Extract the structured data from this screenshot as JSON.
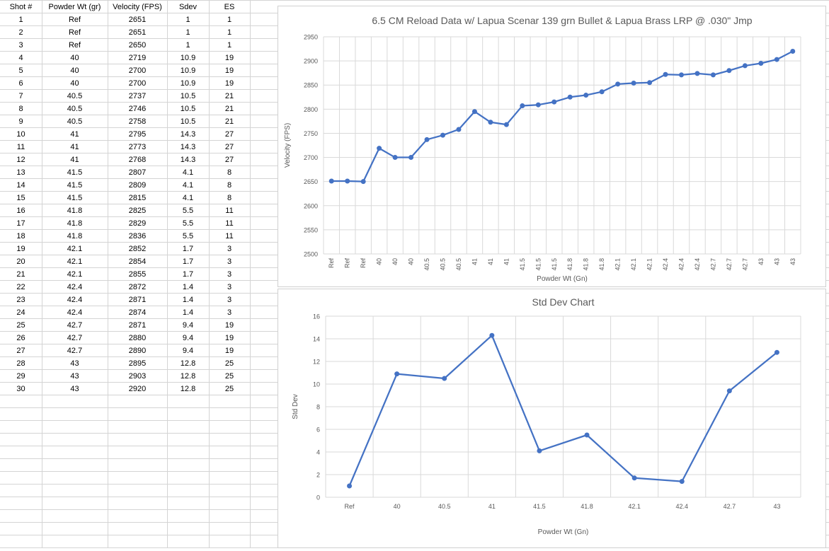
{
  "table": {
    "headers": [
      "Shot #",
      "Powder Wt (gr)",
      "Velocity (FPS)",
      "Sdev",
      "ES"
    ],
    "rows": [
      [
        "1",
        "Ref",
        "2651",
        "1",
        "1"
      ],
      [
        "2",
        "Ref",
        "2651",
        "1",
        "1"
      ],
      [
        "3",
        "Ref",
        "2650",
        "1",
        "1"
      ],
      [
        "4",
        "40",
        "2719",
        "10.9",
        "19"
      ],
      [
        "5",
        "40",
        "2700",
        "10.9",
        "19"
      ],
      [
        "6",
        "40",
        "2700",
        "10.9",
        "19"
      ],
      [
        "7",
        "40.5",
        "2737",
        "10.5",
        "21"
      ],
      [
        "8",
        "40.5",
        "2746",
        "10.5",
        "21"
      ],
      [
        "9",
        "40.5",
        "2758",
        "10.5",
        "21"
      ],
      [
        "10",
        "41",
        "2795",
        "14.3",
        "27"
      ],
      [
        "11",
        "41",
        "2773",
        "14.3",
        "27"
      ],
      [
        "12",
        "41",
        "2768",
        "14.3",
        "27"
      ],
      [
        "13",
        "41.5",
        "2807",
        "4.1",
        "8"
      ],
      [
        "14",
        "41.5",
        "2809",
        "4.1",
        "8"
      ],
      [
        "15",
        "41.5",
        "2815",
        "4.1",
        "8"
      ],
      [
        "16",
        "41.8",
        "2825",
        "5.5",
        "11"
      ],
      [
        "17",
        "41.8",
        "2829",
        "5.5",
        "11"
      ],
      [
        "18",
        "41.8",
        "2836",
        "5.5",
        "11"
      ],
      [
        "19",
        "42.1",
        "2852",
        "1.7",
        "3"
      ],
      [
        "20",
        "42.1",
        "2854",
        "1.7",
        "3"
      ],
      [
        "21",
        "42.1",
        "2855",
        "1.7",
        "3"
      ],
      [
        "22",
        "42.4",
        "2872",
        "1.4",
        "3"
      ],
      [
        "23",
        "42.4",
        "2871",
        "1.4",
        "3"
      ],
      [
        "24",
        "42.4",
        "2874",
        "1.4",
        "3"
      ],
      [
        "25",
        "42.7",
        "2871",
        "9.4",
        "19"
      ],
      [
        "26",
        "42.7",
        "2880",
        "9.4",
        "19"
      ],
      [
        "27",
        "42.7",
        "2890",
        "9.4",
        "19"
      ],
      [
        "28",
        "43",
        "2895",
        "12.8",
        "25"
      ],
      [
        "29",
        "43",
        "2903",
        "12.8",
        "25"
      ],
      [
        "30",
        "43",
        "2920",
        "12.8",
        "25"
      ]
    ]
  },
  "chart_data": [
    {
      "type": "line",
      "title": "6.5 CM Reload Data w/ Lapua Scenar 139 grn Bullet & Lapua Brass LRP @ .030\" Jmp",
      "xlabel": "Powder Wt (Gn)",
      "ylabel": "Velocity (FPS)",
      "ylim": [
        2500,
        2950
      ],
      "yticks": [
        2500,
        2550,
        2600,
        2650,
        2700,
        2750,
        2800,
        2850,
        2900,
        2950
      ],
      "grid": true,
      "categories": [
        "Ref",
        "Ref",
        "Ref",
        "40",
        "40",
        "40",
        "40.5",
        "40.5",
        "40.5",
        "41",
        "41",
        "41",
        "41.5",
        "41.5",
        "41.5",
        "41.8",
        "41.8",
        "41.8",
        "42.1",
        "42.1",
        "42.1",
        "42.4",
        "42.4",
        "42.4",
        "42.7",
        "42.7",
        "42.7",
        "43",
        "43",
        "43"
      ],
      "series": [
        {
          "values": [
            2651,
            2651,
            2650,
            2719,
            2700,
            2700,
            2737,
            2746,
            2758,
            2795,
            2773,
            2768,
            2807,
            2809,
            2815,
            2825,
            2829,
            2836,
            2852,
            2854,
            2855,
            2872,
            2871,
            2874,
            2871,
            2880,
            2890,
            2895,
            2903,
            2920
          ],
          "color": "#4472C4"
        }
      ]
    },
    {
      "type": "line",
      "title": "Std Dev Chart",
      "xlabel": "Powder Wt (Gn)",
      "ylabel": "Std Dev",
      "ylim": [
        0,
        16
      ],
      "yticks": [
        0,
        2,
        4,
        6,
        8,
        10,
        12,
        14,
        16
      ],
      "grid": true,
      "categories": [
        "Ref",
        "40",
        "40.5",
        "41",
        "41.5",
        "41.8",
        "42.1",
        "42.4",
        "42.7",
        "43"
      ],
      "series": [
        {
          "values": [
            1,
            10.9,
            10.5,
            14.3,
            4.1,
            5.5,
            1.7,
            1.4,
            9.4,
            12.8
          ],
          "color": "#4472C4"
        }
      ]
    }
  ]
}
